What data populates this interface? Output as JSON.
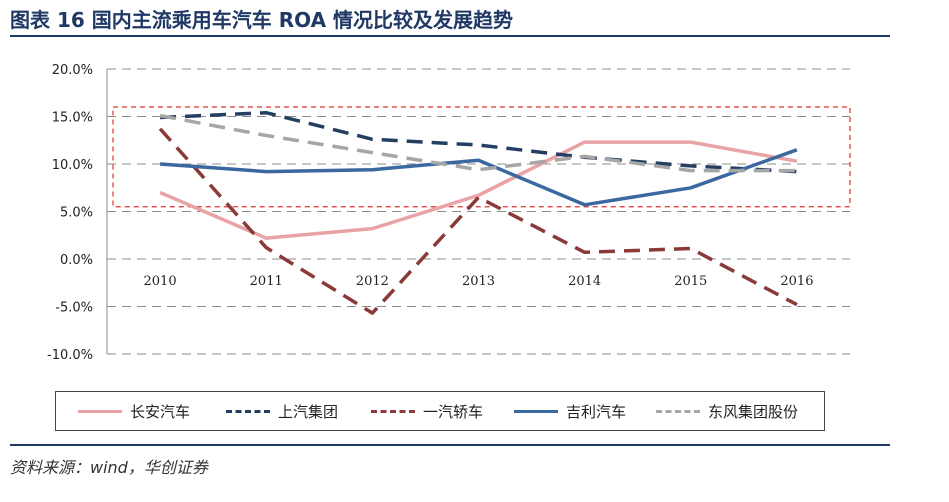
{
  "page": {
    "title": "图表 16    国内主流乘用车汽车 ROA 情况比较及发展趋势",
    "source": "资料来源：wind，华创证券"
  },
  "chart_data": {
    "type": "line",
    "categories": [
      "2010",
      "2011",
      "2012",
      "2013",
      "2014",
      "2015",
      "2016"
    ],
    "ylim": [
      -0.1,
      0.2
    ],
    "y_ticks": [
      0.2,
      0.15,
      0.1,
      0.05,
      0.0,
      -0.05,
      -0.1
    ],
    "y_tick_labels": [
      "20.0%",
      "15.0%",
      "10.0%",
      "5.0%",
      "0.0%",
      "-5.0%",
      "-10.0%"
    ],
    "grid": true,
    "legend_position": "bottom",
    "highlight_region": {
      "y_from": 0.055,
      "y_to": 0.16,
      "color": "#e03030"
    },
    "series": [
      {
        "name": "长安汽车",
        "color": "#e8a3a6",
        "dashed": false,
        "values": [
          0.07,
          0.022,
          0.032,
          0.067,
          0.123,
          0.123,
          0.103
        ]
      },
      {
        "name": "上汽集团",
        "color": "#243f60",
        "dashed": true,
        "values": [
          0.149,
          0.154,
          0.126,
          0.12,
          0.107,
          0.098,
          0.092
        ]
      },
      {
        "name": "一汽轿车",
        "color": "#8b3a3a",
        "dashed": true,
        "values": [
          0.137,
          0.012,
          -0.057,
          0.065,
          0.007,
          0.011,
          -0.048
        ]
      },
      {
        "name": "吉利汽车",
        "color": "#3b68a0",
        "dashed": false,
        "values": [
          0.1,
          0.092,
          0.094,
          0.104,
          0.057,
          0.075,
          0.115
        ]
      },
      {
        "name": "东风集团股份",
        "color": "#a6a6a6",
        "dashed": true,
        "values": [
          0.151,
          0.13,
          0.112,
          0.094,
          0.108,
          0.093,
          0.093
        ]
      }
    ]
  }
}
